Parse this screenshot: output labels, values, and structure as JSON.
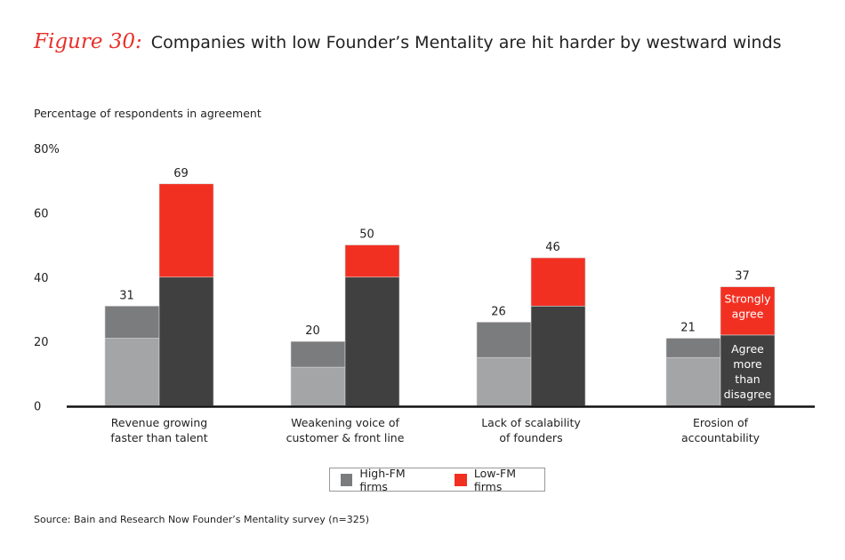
{
  "header": {
    "figure_label": "Figure 30:",
    "title": "Companies with low Founder’s Mentality are hit harder by westward winds"
  },
  "chart_data": {
    "type": "bar",
    "stacked": true,
    "ylabel": "Percentage of respondents in agreement",
    "ylim": [
      0,
      80
    ],
    "yticks": [
      "0",
      "20",
      "40",
      "60",
      "80%"
    ],
    "ytick_values": [
      0,
      20,
      40,
      60,
      80
    ],
    "grid": false,
    "categories": [
      "Revenue growing\nfaster than talent",
      "Weakening voice of\ncustomer & front line",
      "Lack of scalability\nof founders",
      "Erosion of\naccountability"
    ],
    "groups": [
      {
        "name": "High-FM firms",
        "agree": [
          21,
          12,
          15,
          15
        ],
        "strongly": [
          10,
          8,
          11,
          6
        ],
        "totals": [
          "31",
          "20",
          "26",
          "21"
        ],
        "colors": {
          "agree": "#a3a5a7",
          "strongly": "#7b7c7e"
        }
      },
      {
        "name": "Low-FM firms",
        "agree": [
          40,
          40,
          31,
          22
        ],
        "strongly": [
          29,
          10,
          15,
          15
        ],
        "totals": [
          "69",
          "50",
          "46",
          "37"
        ],
        "colors": {
          "agree": "#404041",
          "strongly": "#f23022"
        }
      }
    ],
    "annotations": {
      "strongly": "Strongly\nagree",
      "agree": "Agree\nmore\nthan\ndisagree"
    },
    "legend": {
      "placement": "bottom",
      "entries": [
        {
          "label": "High-FM firms",
          "color": "#7b7c7e"
        },
        {
          "label": "Low-FM firms",
          "color": "#f23022"
        }
      ]
    }
  },
  "source": "Source: Bain and Research Now Founder’s Mentality survey (n=325)"
}
